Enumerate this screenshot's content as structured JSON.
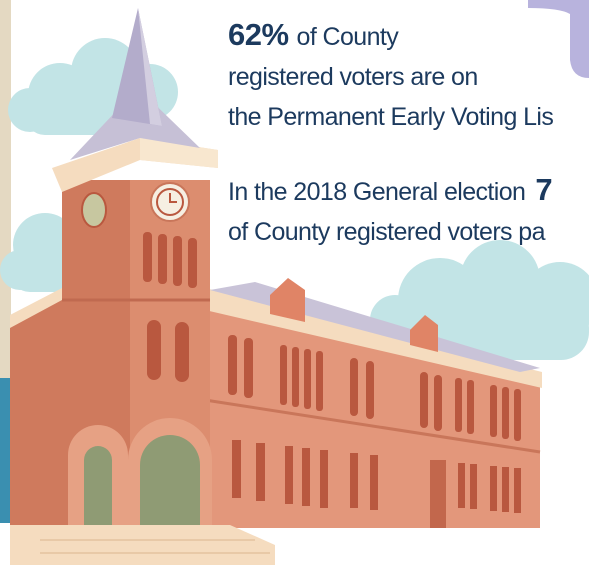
{
  "infographic": {
    "early_voting": {
      "stat": "62%",
      "line1_rest": "of County",
      "line2": "registered voters are on",
      "line3": "the Permanent Early Voting Lis"
    },
    "election": {
      "line1": "In the 2018 General election",
      "stat": "7",
      "line2": "of County registered voters pa"
    }
  }
}
